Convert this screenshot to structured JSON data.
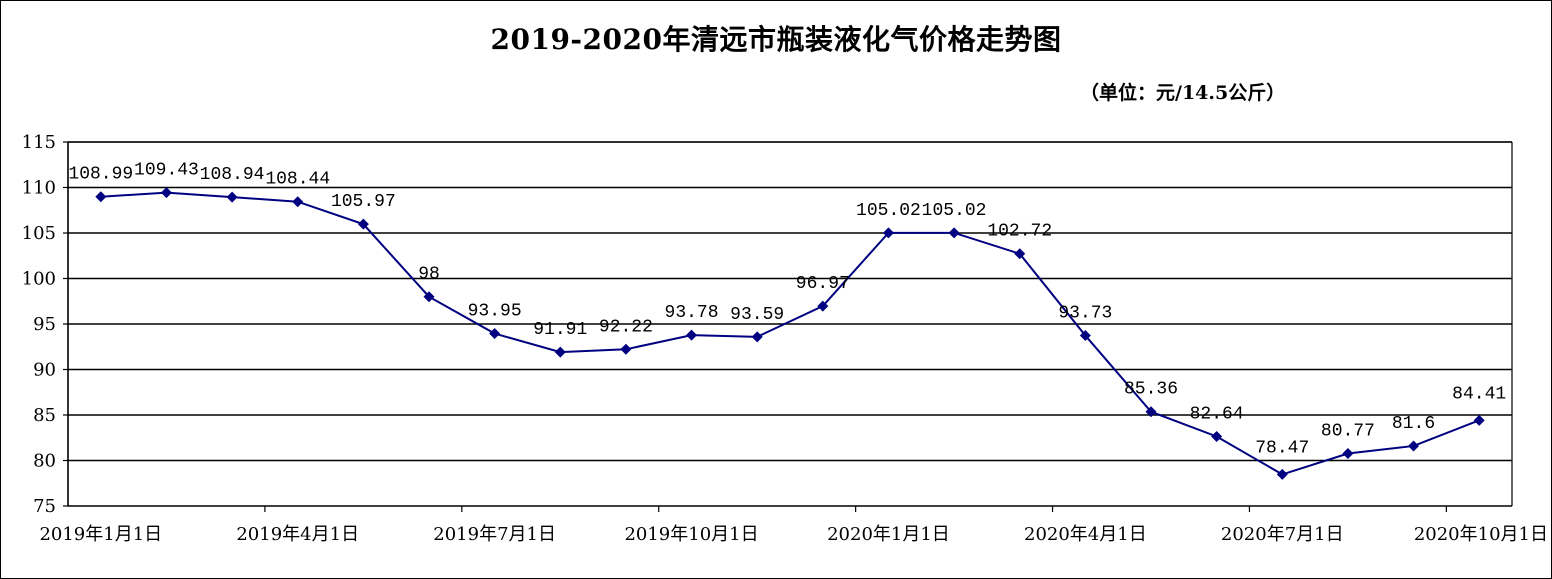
{
  "chart_data": {
    "type": "line",
    "title": "2019-2020年清远市瓶装液化气价格走势图",
    "subtitle": "（单位：元/14.5公斤）",
    "xlabel": "",
    "ylabel": "",
    "ylim": [
      75,
      115
    ],
    "y_ticks": [
      75,
      80,
      85,
      90,
      95,
      100,
      105,
      110,
      115
    ],
    "grid": "horizontal",
    "x": [
      "2019年1月",
      "2019年2月",
      "2019年3月",
      "2019年4月",
      "2019年5月",
      "2019年6月",
      "2019年7月",
      "2019年8月",
      "2019年9月",
      "2019年10月",
      "2019年11月",
      "2019年12月",
      "2020年1月",
      "2020年2月",
      "2020年3月",
      "2020年4月",
      "2020年5月",
      "2020年6月",
      "2020年7月",
      "2020年8月",
      "2020年9月",
      "2020年10月"
    ],
    "x_tick_labels": [
      "2019年1月1日",
      "2019年4月1日",
      "2019年7月1日",
      "2019年10月1日",
      "2020年1月1日",
      "2020年4月1日",
      "2020年7月1日",
      "2020年10月1日"
    ],
    "series": [
      {
        "color": "#000080",
        "values": [
          108.99,
          109.43,
          108.94,
          108.44,
          105.97,
          98,
          93.95,
          91.91,
          92.22,
          93.78,
          93.59,
          96.97,
          105.02,
          105.02,
          102.72,
          93.73,
          85.36,
          82.64,
          78.47,
          80.77,
          81.6,
          84.41
        ],
        "labels": [
          "108.99",
          "109.43",
          "108.94",
          "108.44",
          "105.97",
          "98",
          "93.95",
          "91.91",
          "92.22",
          "93.78",
          "93.59",
          "96.97",
          "105.02",
          "105.02",
          "102.72",
          "93.73",
          "85.36",
          "82.64",
          "78.47",
          "80.77",
          "81.6",
          "84.41"
        ]
      }
    ]
  }
}
